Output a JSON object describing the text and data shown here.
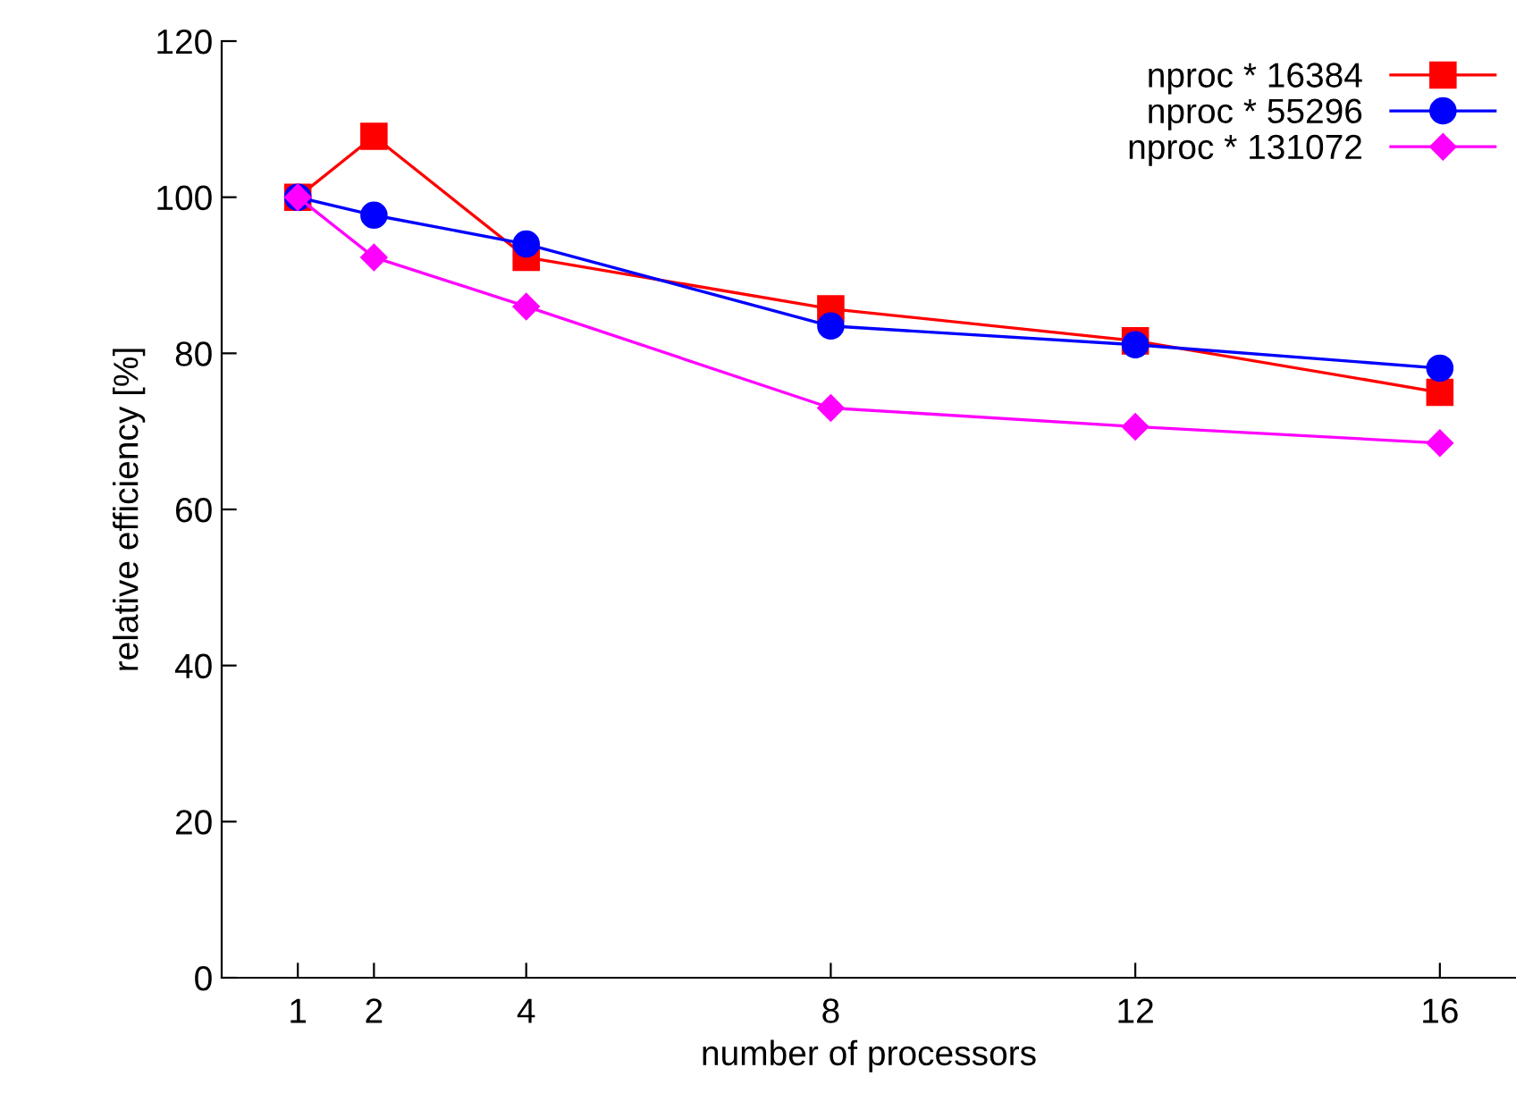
{
  "chart_data": {
    "type": "line",
    "xlabel": "number of processors",
    "ylabel": "relative efficiency [%]",
    "x": [
      1,
      2,
      4,
      8,
      12,
      16
    ],
    "xlim": [
      0,
      17
    ],
    "xticks": [
      1,
      2,
      4,
      8,
      12,
      16
    ],
    "ylim": [
      0,
      120
    ],
    "yticks": [
      0,
      20,
      40,
      60,
      80,
      100,
      120
    ],
    "grid": false,
    "legend": "top right",
    "line_style": "solid",
    "series": [
      {
        "name": "nproc * 16384",
        "color": "#ff0000",
        "marker": "square",
        "values": [
          100,
          107.8,
          92.3,
          85.7,
          81.6,
          75.0
        ]
      },
      {
        "name": "nproc * 55296",
        "color": "#0000ff",
        "marker": "circle",
        "values": [
          100,
          97.7,
          94.0,
          83.5,
          81.1,
          78.1
        ]
      },
      {
        "name": "nproc * 131072",
        "color": "#ff00ff",
        "marker": "diamond",
        "values": [
          100,
          92.3,
          86.0,
          73.0,
          70.6,
          68.5
        ]
      }
    ]
  }
}
